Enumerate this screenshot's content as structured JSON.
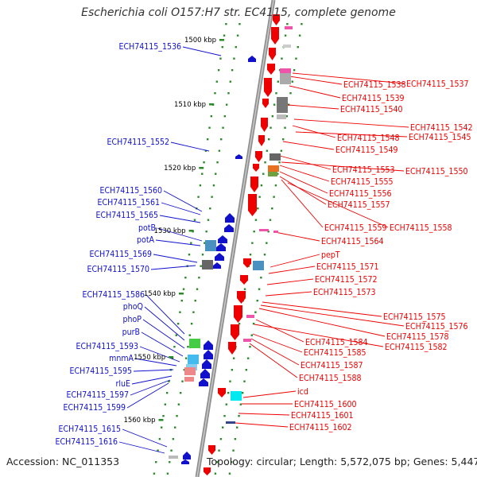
{
  "title": "Escherichia coli O157:H7 str. EC4115, complete genome",
  "footer": {
    "accession": "Accession: NC_011353",
    "topology": "Topology: circular; Length: 5,572,075 bp; Genes: 5,447"
  },
  "colors": {
    "forward": "#ee0000",
    "reverse": "#1111cc",
    "backbone": "#888888",
    "tick_green": "#2a8a2a"
  },
  "ruler": [
    "1500 kbp",
    "1510 kbp",
    "1520 kbp",
    "1530 kbp",
    "1540 kbp",
    "1550 kbp",
    "1560 kbp"
  ],
  "left_labels": [
    "ECH74115_1536",
    "ECH74115_1552",
    "ECH74115_1560",
    "ECH74115_1561",
    "ECH74115_1565",
    "potB",
    "potA",
    "ECH74115_1569",
    "ECH74115_1570",
    "ECH74115_1586",
    "phoQ",
    "phoP",
    "purB",
    "ECH74115_1593",
    "mnmA",
    "ECH74115_1595",
    "rluE",
    "ECH74115_1597",
    "ECH74115_1599",
    "ECH74115_1615",
    "ECH74115_1616"
  ],
  "right_labels": [
    "ECH74115_1537",
    "ECH74115_1538",
    "ECH74115_1539",
    "ECH74115_1540",
    "ECH74115_1542",
    "ECH74115_1548",
    "ECH74115_1545",
    "ECH74115_1549",
    "ECH74115_1553",
    "ECH74115_1550",
    "ECH74115_1555",
    "ECH74115_1556",
    "ECH74115_1557",
    "ECH74115_1559",
    "ECH74115_1558",
    "ECH74115_1564",
    "pepT",
    "ECH74115_1571",
    "ECH74115_1572",
    "ECH74115_1573",
    "ECH74115_1575",
    "ECH74115_1576",
    "ECH74115_1578",
    "ECH74115_1584",
    "ECH74115_1582",
    "ECH74115_1585",
    "ECH74115_1587",
    "ECH74115_1588",
    "icd",
    "ECH74115_1600",
    "ECH74115_1601",
    "ECH74115_1602"
  ]
}
